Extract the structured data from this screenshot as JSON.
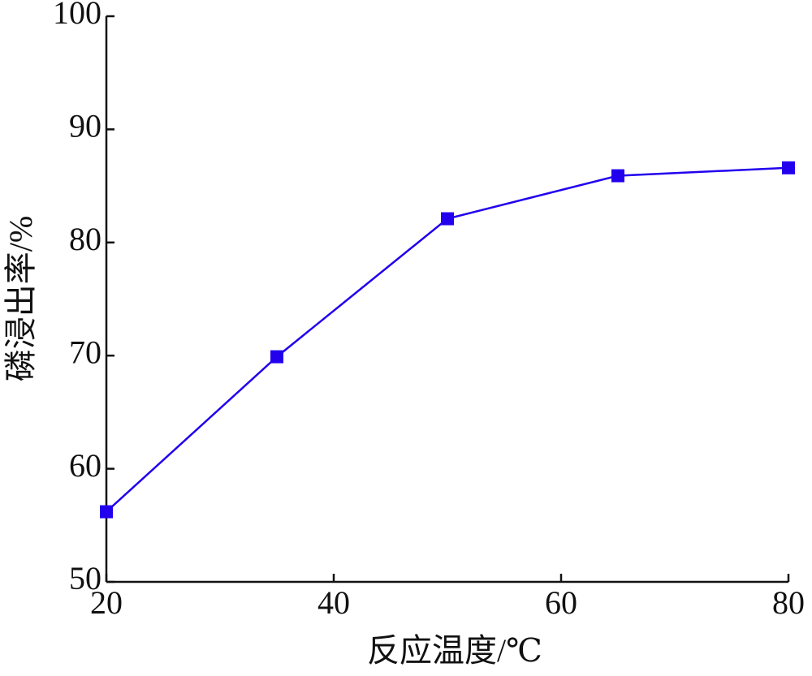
{
  "chart_data": {
    "type": "line",
    "x_label": "反应温度/℃",
    "y_label": "磷浸出率/%",
    "x": [
      20,
      35,
      50,
      65,
      80
    ],
    "series": [
      {
        "name": null,
        "color": "#2200ee",
        "values": [
          56.2,
          69.9,
          82.1,
          85.9,
          86.6
        ]
      }
    ],
    "xlim": [
      20,
      80
    ],
    "xticks": [
      20,
      40,
      60,
      80
    ],
    "ylim": [
      50,
      100
    ],
    "yticks": [
      50,
      60,
      70,
      80,
      90,
      100
    ],
    "grid": false,
    "marker": "square"
  }
}
